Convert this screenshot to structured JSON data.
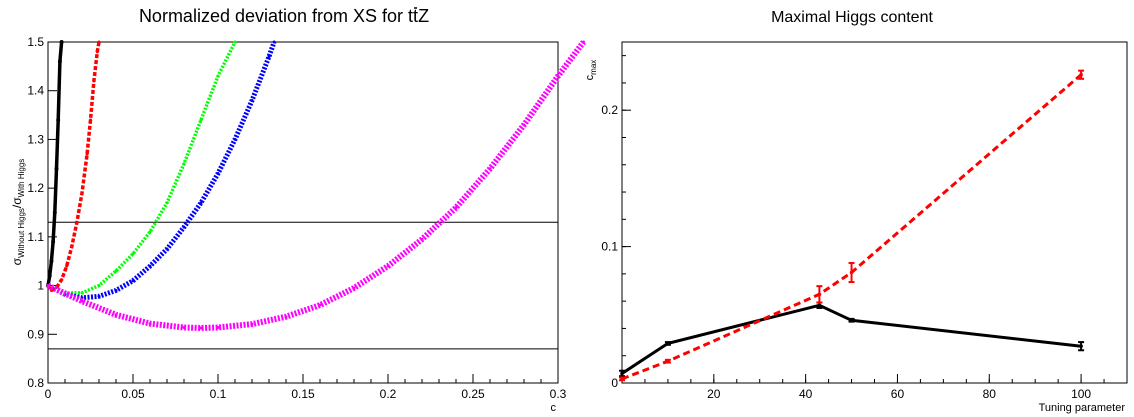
{
  "chart_data": [
    {
      "type": "line",
      "title": "Normalized deviation from XS for tt̄Z",
      "title_parts": {
        "prefix": "Normalized deviation from XS for t",
        "overbar": "t",
        "suffix": "Z"
      },
      "xlabel": "c",
      "ylabel": {
        "sigma": "σ",
        "num_sub": "Without Higgs",
        "slash": "/",
        "den_sub": "With Higgs"
      },
      "xlim": [
        0,
        0.3
      ],
      "ylim": [
        0.8,
        1.5
      ],
      "x_ticks": [
        {
          "v": 0,
          "label": "0"
        },
        {
          "v": 0.05,
          "label": "0.05"
        },
        {
          "v": 0.1,
          "label": "0.1"
        },
        {
          "v": 0.15,
          "label": "0.15"
        },
        {
          "v": 0.2,
          "label": "0.2"
        },
        {
          "v": 0.25,
          "label": "0.25"
        },
        {
          "v": 0.3,
          "label": "0.3"
        }
      ],
      "y_ticks": [
        {
          "v": 0.8,
          "label": "0.8"
        },
        {
          "v": 0.9,
          "label": "0.9"
        },
        {
          "v": 1.0,
          "label": "1"
        },
        {
          "v": 1.1,
          "label": "1.1"
        },
        {
          "v": 1.2,
          "label": "1.2"
        },
        {
          "v": 1.3,
          "label": "1.3"
        },
        {
          "v": 1.4,
          "label": "1.4"
        },
        {
          "v": 1.5,
          "label": "1.5"
        }
      ],
      "hlines": [
        1.13,
        0.87
      ],
      "grid": false,
      "series": [
        {
          "color": "#000000",
          "x": [
            0,
            0.001,
            0.002,
            0.003,
            0.004,
            0.005,
            0.006,
            0.007,
            0.008
          ],
          "y": [
            1.0,
            1.02,
            1.05,
            1.09,
            1.15,
            1.24,
            1.34,
            1.46,
            1.5
          ]
        },
        {
          "color": "#ff0000",
          "x": [
            0,
            0.002,
            0.005,
            0.008,
            0.011,
            0.014,
            0.017,
            0.02,
            0.023,
            0.025,
            0.027,
            0.029,
            0.03
          ],
          "y": [
            1.0,
            0.99,
            0.996,
            1.012,
            1.04,
            1.08,
            1.13,
            1.19,
            1.27,
            1.34,
            1.42,
            1.48,
            1.5
          ]
        },
        {
          "color": "#00ff00",
          "x": [
            0,
            0.01,
            0.02,
            0.03,
            0.04,
            0.05,
            0.06,
            0.07,
            0.08,
            0.09,
            0.1,
            0.11
          ],
          "y": [
            1.0,
            0.985,
            0.985,
            1.0,
            1.03,
            1.065,
            1.11,
            1.17,
            1.25,
            1.34,
            1.43,
            1.5
          ]
        },
        {
          "color": "#0000ff",
          "x": [
            0,
            0.01,
            0.02,
            0.03,
            0.04,
            0.05,
            0.06,
            0.07,
            0.08,
            0.09,
            0.1,
            0.11,
            0.12,
            0.13,
            0.133
          ],
          "y": [
            1.0,
            0.982,
            0.975,
            0.978,
            0.99,
            1.01,
            1.04,
            1.075,
            1.12,
            1.17,
            1.23,
            1.3,
            1.38,
            1.47,
            1.5
          ]
        },
        {
          "color": "#ff00ff",
          "x": [
            0,
            0.02,
            0.04,
            0.06,
            0.08,
            0.09,
            0.1,
            0.12,
            0.14,
            0.16,
            0.18,
            0.2,
            0.22,
            0.24,
            0.26,
            0.28,
            0.3,
            0.315
          ],
          "y": [
            1.0,
            0.968,
            0.94,
            0.922,
            0.914,
            0.913,
            0.914,
            0.921,
            0.936,
            0.96,
            0.995,
            1.04,
            1.095,
            1.16,
            1.24,
            1.33,
            1.43,
            1.5
          ]
        }
      ]
    },
    {
      "type": "line",
      "title": "Maximal Higgs content",
      "xlabel": "Tuning parameter",
      "ylabel": {
        "main": "c",
        "sub": "max"
      },
      "xlim": [
        0,
        110
      ],
      "ylim": [
        0,
        0.25
      ],
      "x_ticks": [
        {
          "v": 20,
          "label": "20"
        },
        {
          "v": 40,
          "label": "40"
        },
        {
          "v": 60,
          "label": "60"
        },
        {
          "v": 80,
          "label": "80"
        },
        {
          "v": 100,
          "label": "100"
        }
      ],
      "y_ticks": [
        {
          "v": 0,
          "label": "0"
        },
        {
          "v": 0.1,
          "label": "0.1"
        },
        {
          "v": 0.2,
          "label": "0.2"
        }
      ],
      "grid": false,
      "series": [
        {
          "color": "#000000",
          "style": "solid",
          "x": [
            0,
            10,
            43,
            50,
            100
          ],
          "y": [
            0.007,
            0.029,
            0.057,
            0.046,
            0.027
          ],
          "err": [
            0.002,
            0.001,
            0.002,
            0.001,
            0.003
          ]
        },
        {
          "color": "#ff0000",
          "style": "dashed",
          "x": [
            0,
            10,
            43,
            50,
            100
          ],
          "y": [
            0.003,
            0.016,
            0.065,
            0.081,
            0.226
          ],
          "err": [
            0.001,
            0.001,
            0.006,
            0.007,
            0.003
          ]
        }
      ]
    }
  ]
}
